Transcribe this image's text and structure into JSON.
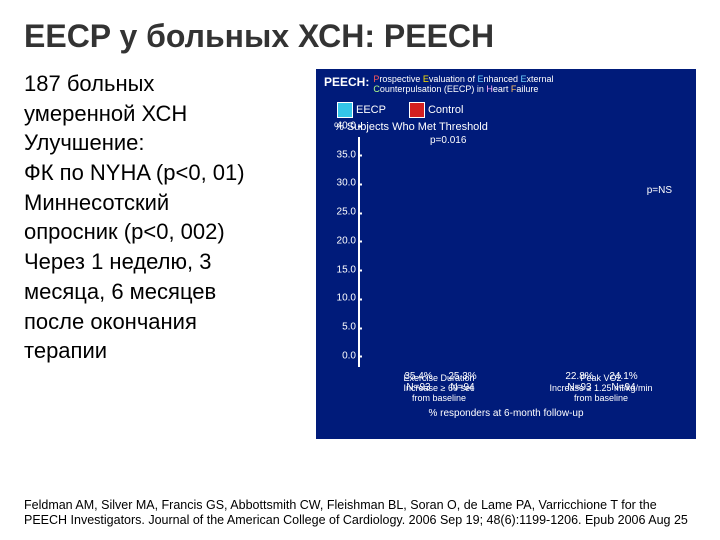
{
  "title": "EECP у больных ХСН: PEECH",
  "left_text": {
    "l1": "187 больных",
    "l2": "умеренной ХСН",
    "l3": "Улучшение:",
    "l4": "ФК по NYHA (p<0, 01)",
    "l5": "Миннесотский",
    "l6": "опросник (p<0, 002)",
    "l7": "Через 1 неделю, 3",
    "l8": "месяца, 6 месяцев",
    "l9": "после окончания",
    "l10": "терапии"
  },
  "chart": {
    "peech_label": "PEECH:",
    "peech_expansion_parts": {
      "p": "P",
      "rospective": "rospective ",
      "e": "E",
      "valuation": "valuation of ",
      "e2": "E",
      "nhanced": "nhanced ",
      "e3": "E",
      "xternal": "xternal",
      "c": "C",
      "ounter": "ounterpulsation (EECP) in ",
      "h": "H",
      "eart": "eart ",
      "f": "F",
      "ailure": "ailure"
    },
    "legend": {
      "eecp": {
        "label": "EECP",
        "color": "#34c5e8"
      },
      "control": {
        "label": "Control",
        "color": "#d42020"
      }
    },
    "subtitle": "% Subjects Who Met Threshold",
    "y": {
      "max": 40,
      "ticks": [
        0.0,
        5.0,
        10.0,
        15.0,
        20.0,
        25.0,
        30.0,
        35.0,
        40.0
      ]
    },
    "pvals": {
      "g1": "p=0.016",
      "g2": "p=NS"
    },
    "groups": [
      {
        "xlabel": "Exercise Duration\nIncrease ≥ 60 sec\nfrom baseline",
        "bars": [
          {
            "value": 35.4,
            "label": "35.4%",
            "n": "N=93",
            "color": "#34c5e8"
          },
          {
            "value": 25.3,
            "label": "25.3%",
            "n": "N=94",
            "color": "#d42020"
          }
        ]
      },
      {
        "xlabel": "Peak VO2\nIncrease ≥ 1.25 ml/kg/min\nfrom baseline",
        "bars": [
          {
            "value": 22.8,
            "label": "22.8%",
            "n": "N=93",
            "color": "#34c5e8"
          },
          {
            "value": 24.1,
            "label": "24.1%",
            "n": "N=94",
            "color": "#d42020"
          }
        ]
      }
    ],
    "footer": "% responders at 6-month follow-up",
    "bg_color": "#001b7a",
    "text_color": "#ffffff"
  },
  "citation": "Feldman AM, Silver MA, Francis GS, Abbottsmith CW, Fleishman BL, Soran O, de Lame PA, Varricchione T for the PEECH Investigators. Journal of the American College of Cardiology. 2006 Sep 19; 48(6):1199-1206. Epub 2006 Aug 25"
}
